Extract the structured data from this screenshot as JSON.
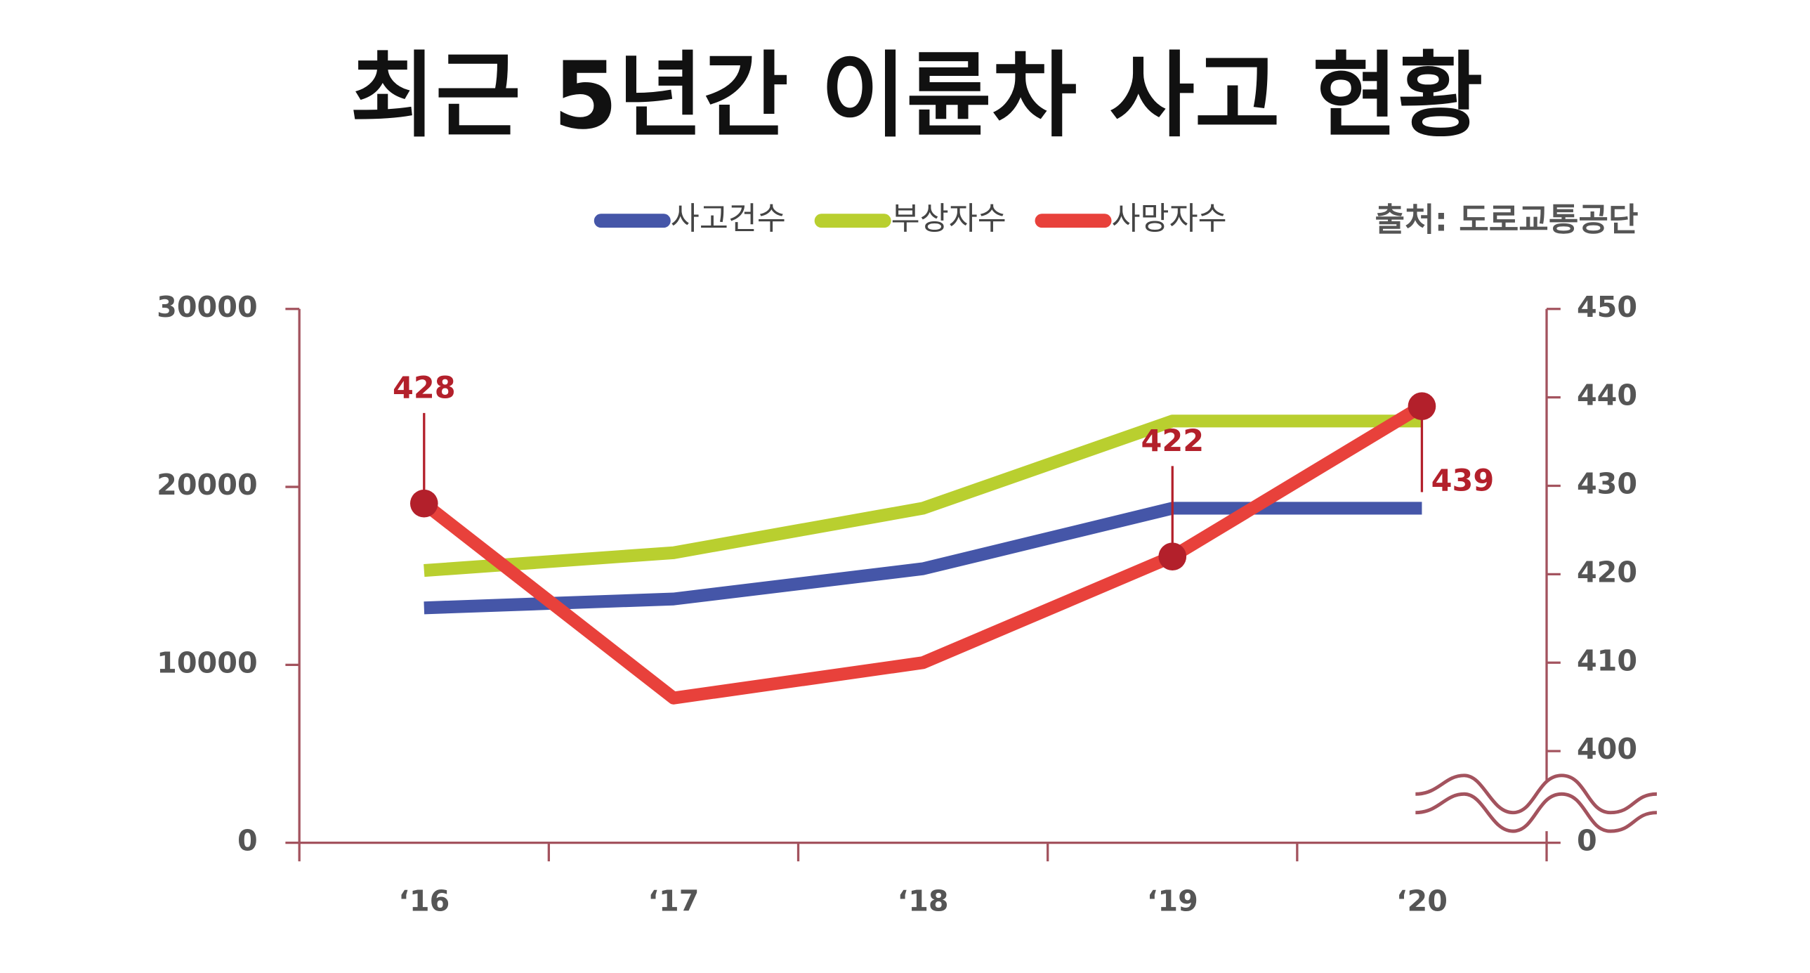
{
  "chart_data": {
    "type": "line",
    "title": "최근 5년간 이륜차 사고 현황",
    "source": "출처: 도로교통공단",
    "categories": [
      "‘16",
      "‘17",
      "‘18",
      "‘19",
      "‘20"
    ],
    "series": [
      {
        "name": "사고건수",
        "color": "#4556a8",
        "values": [
          13200,
          13700,
          15400,
          18800,
          18800
        ]
      },
      {
        "name": "부상자수",
        "color": "#b9cf2f",
        "values": [
          15300,
          16300,
          18800,
          23700,
          23700
        ]
      },
      {
        "name": "사망자수",
        "color": "#e8413b",
        "axis": "y2",
        "marker_color": "#b3202b",
        "values": [
          428,
          406,
          410,
          422,
          439
        ],
        "value_labels": [
          428,
          null,
          null,
          422,
          439
        ]
      }
    ],
    "ylim": [
      0,
      30000
    ],
    "yticks": [
      0,
      10000,
      20000,
      30000
    ],
    "y2lim": [
      0,
      450
    ],
    "y2ticks": [
      0,
      400,
      410,
      420,
      430,
      440,
      450
    ],
    "axis_break": {
      "axis": "y2",
      "from": 0,
      "to": 400
    },
    "axis_color": "#a3535e",
    "legend": "top"
  }
}
